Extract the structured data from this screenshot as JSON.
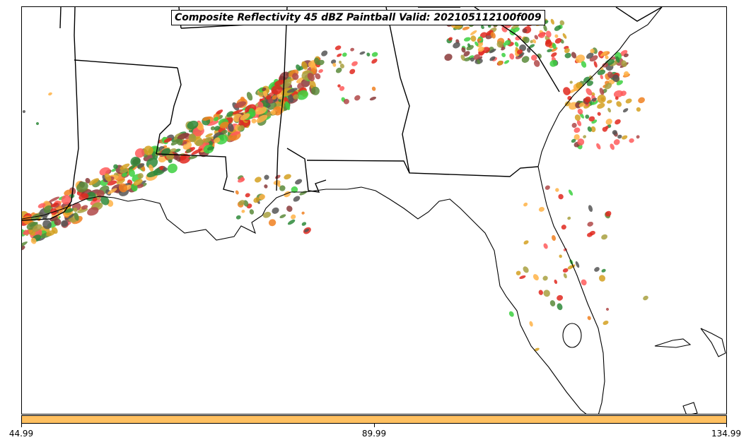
{
  "title": "Composite Reflectivity 45 dBZ Paintball Valid: 202105112100f009",
  "map": {
    "region": "US Gulf Coast and Southeast",
    "member_colors": [
      "#e0281f",
      "#f08020",
      "#ff5a5a",
      "#3cd040",
      "#2e8a3a",
      "#a8a040",
      "#b04848",
      "#ffb347",
      "#8a3a3a",
      "#5a8a3a",
      "#d4a020",
      "#555555"
    ]
  },
  "colorbar": {
    "color": "#ffc060",
    "ticks": [
      "44.99",
      "89.99",
      "134.99"
    ]
  }
}
